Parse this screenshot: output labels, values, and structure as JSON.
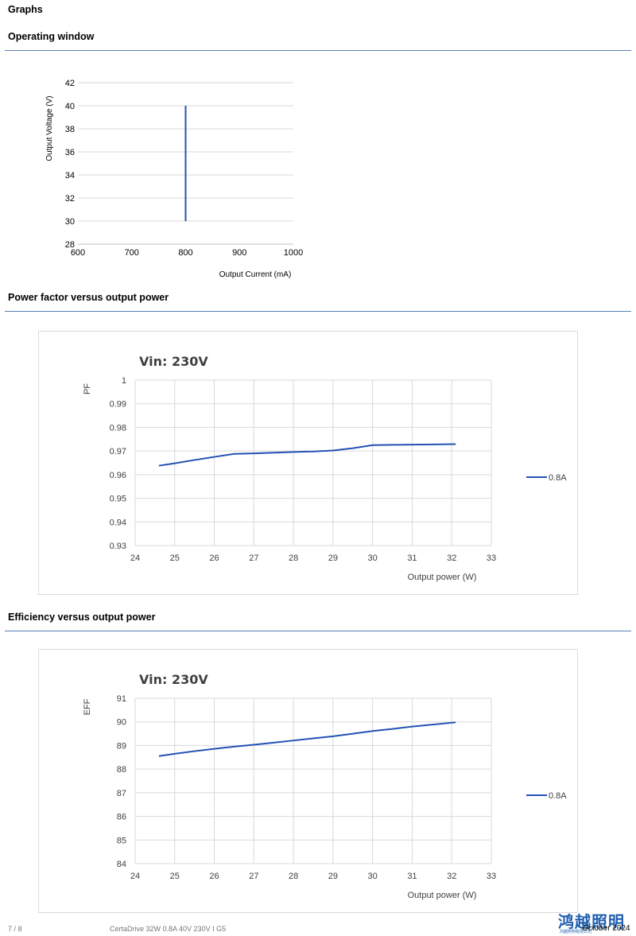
{
  "headings": {
    "graphs": "Graphs",
    "operating_window": "Operating window",
    "pf_vs_power": "Power factor versus output power",
    "eff_vs_power": "Efficiency versus output power"
  },
  "footer": {
    "page": "7 / 8",
    "product": "CertaDrive 32W 0.8A 40V 230V I G5",
    "date": "October 2024",
    "logo": "鸿越照明",
    "logo_sub": "鸿越照明有限公司"
  },
  "colors": {
    "line": "#2352b4",
    "rule": "#5b7fb5",
    "grid": "#d9d9d9"
  },
  "chart_data": [
    {
      "type": "line",
      "title": "",
      "xlabel": "Output Current (mA)",
      "ylabel": "Output Voltage (V)",
      "xlim": [
        600,
        1000
      ],
      "ylim": [
        28,
        42
      ],
      "x_ticks": [
        600,
        700,
        800,
        900,
        1000
      ],
      "y_ticks": [
        28,
        30,
        32,
        34,
        36,
        38,
        40,
        42
      ],
      "grid": "horizontal",
      "series": [
        {
          "x": [
            800,
            800
          ],
          "y": [
            30,
            40
          ]
        }
      ]
    },
    {
      "type": "line",
      "title": "Vin: 230V",
      "xlabel": "Output power (W)",
      "ylabel": "PF",
      "xlim": [
        24,
        33
      ],
      "ylim": [
        0.93,
        1
      ],
      "x_ticks": [
        "24",
        "25",
        "26",
        "27",
        "28",
        "29",
        "30",
        "31",
        "32",
        "33"
      ],
      "y_ticks": [
        "0.93",
        "0.94",
        "0.95",
        "0.96",
        "0.97",
        "0.98",
        "0.99",
        "1"
      ],
      "grid": "both",
      "legend_position": "right",
      "series": [
        {
          "name": "0.8A",
          "x": [
            24.6,
            25.0,
            25.5,
            26.0,
            26.5,
            27.0,
            27.5,
            28.0,
            28.5,
            29.0,
            29.5,
            30.0,
            30.5,
            31.0,
            31.5,
            32.1
          ],
          "y": [
            0.9638,
            0.9648,
            0.9662,
            0.9675,
            0.9688,
            0.969,
            0.9693,
            0.9696,
            0.9698,
            0.9702,
            0.9712,
            0.9725,
            0.9726,
            0.9727,
            0.9728,
            0.9729
          ]
        }
      ]
    },
    {
      "type": "line",
      "title": "Vin: 230V",
      "xlabel": "Output power (W)",
      "ylabel": "EFF",
      "xlim": [
        24,
        33
      ],
      "ylim": [
        84,
        91
      ],
      "x_ticks": [
        "24",
        "25",
        "26",
        "27",
        "28",
        "29",
        "30",
        "31",
        "32",
        "33"
      ],
      "y_ticks": [
        "84",
        "85",
        "86",
        "87",
        "88",
        "89",
        "90",
        "91"
      ],
      "grid": "both",
      "legend_position": "right",
      "series": [
        {
          "name": "0.8A",
          "x": [
            24.6,
            25.0,
            25.5,
            26.0,
            26.5,
            27.0,
            27.5,
            28.0,
            28.5,
            29.0,
            29.5,
            30.0,
            30.5,
            31.0,
            31.5,
            32.1
          ],
          "y": [
            88.55,
            88.65,
            88.76,
            88.86,
            88.95,
            89.03,
            89.12,
            89.21,
            89.3,
            89.39,
            89.5,
            89.61,
            89.7,
            89.8,
            89.88,
            89.98
          ]
        }
      ]
    }
  ]
}
